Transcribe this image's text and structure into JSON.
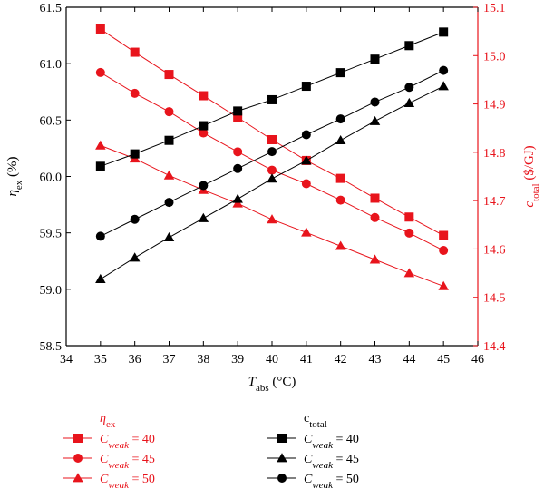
{
  "chart_data": {
    "type": "line",
    "x": [
      35,
      36,
      37,
      38,
      39,
      40,
      41,
      42,
      43,
      44,
      45
    ],
    "x_ticks": [
      34,
      35,
      36,
      37,
      38,
      39,
      40,
      41,
      42,
      43,
      44,
      45,
      46
    ],
    "xlim": [
      34,
      46
    ],
    "xlabel": {
      "main": "T",
      "sub": "abs",
      "rest": " (°C)"
    },
    "y_left": {
      "label": {
        "main": "η",
        "sub": "ex",
        "rest": " (%)"
      },
      "lim": [
        58.5,
        61.5
      ],
      "ticks": [
        "58.5",
        "59.0",
        "59.5",
        "60.0",
        "60.5",
        "61.0",
        "61.5"
      ],
      "color": "#000000"
    },
    "y_right": {
      "label": {
        "main": "c",
        "sub": "total",
        "rest": " ($/GJ)"
      },
      "lim": [
        14.4,
        15.1
      ],
      "ticks": [
        "14.4",
        "14.5",
        "14.6",
        "14.7",
        "14.8",
        "14.9",
        "15.0",
        "15.1"
      ],
      "color": "#e8141c"
    },
    "series": [
      {
        "group": "eta_ex",
        "axis": "right",
        "weak": "40",
        "marker": "square",
        "color": "#e8141c",
        "values": [
          15.055,
          15.007,
          14.961,
          14.917,
          14.872,
          14.826,
          14.783,
          14.746,
          14.705,
          14.666,
          14.628
        ]
      },
      {
        "group": "eta_ex",
        "axis": "right",
        "weak": "45",
        "marker": "circle",
        "color": "#e8141c",
        "values": [
          14.965,
          14.922,
          14.884,
          14.84,
          14.801,
          14.763,
          14.735,
          14.701,
          14.665,
          14.633,
          14.597
        ]
      },
      {
        "group": "eta_ex",
        "axis": "right",
        "weak": "50",
        "marker": "triangle",
        "color": "#e8141c",
        "values": [
          14.814,
          14.787,
          14.752,
          14.722,
          14.694,
          14.661,
          14.634,
          14.606,
          14.578,
          14.55,
          14.523
        ]
      },
      {
        "group": "c_total",
        "axis": "left",
        "weak": "40",
        "marker": "square",
        "color": "#000000",
        "values": [
          60.09,
          60.2,
          60.32,
          60.45,
          60.58,
          60.68,
          60.8,
          60.92,
          61.04,
          61.16,
          61.28
        ]
      },
      {
        "group": "c_total",
        "axis": "left",
        "weak": "45",
        "marker": "triangle",
        "color": "#000000",
        "values": [
          59.09,
          59.28,
          59.46,
          59.63,
          59.8,
          59.98,
          60.14,
          60.32,
          60.49,
          60.65,
          60.8
        ]
      },
      {
        "group": "c_total",
        "axis": "left",
        "weak": "50",
        "marker": "circle",
        "color": "#000000",
        "values": [
          59.47,
          59.62,
          59.77,
          59.92,
          60.07,
          60.22,
          60.37,
          60.51,
          60.66,
          60.79,
          60.94
        ]
      }
    ],
    "legend": {
      "placement": "below",
      "groups": [
        {
          "id": "eta_ex",
          "title": {
            "main": "η",
            "sub": "ex"
          },
          "color": "#e8141c"
        },
        {
          "id": "c_total",
          "title": {
            "main": "c",
            "sub": "total"
          },
          "color": "#000000"
        }
      ],
      "entry_var": {
        "main": "C",
        "sub": "weak"
      },
      "entry_eq": " = "
    },
    "grid": false
  }
}
